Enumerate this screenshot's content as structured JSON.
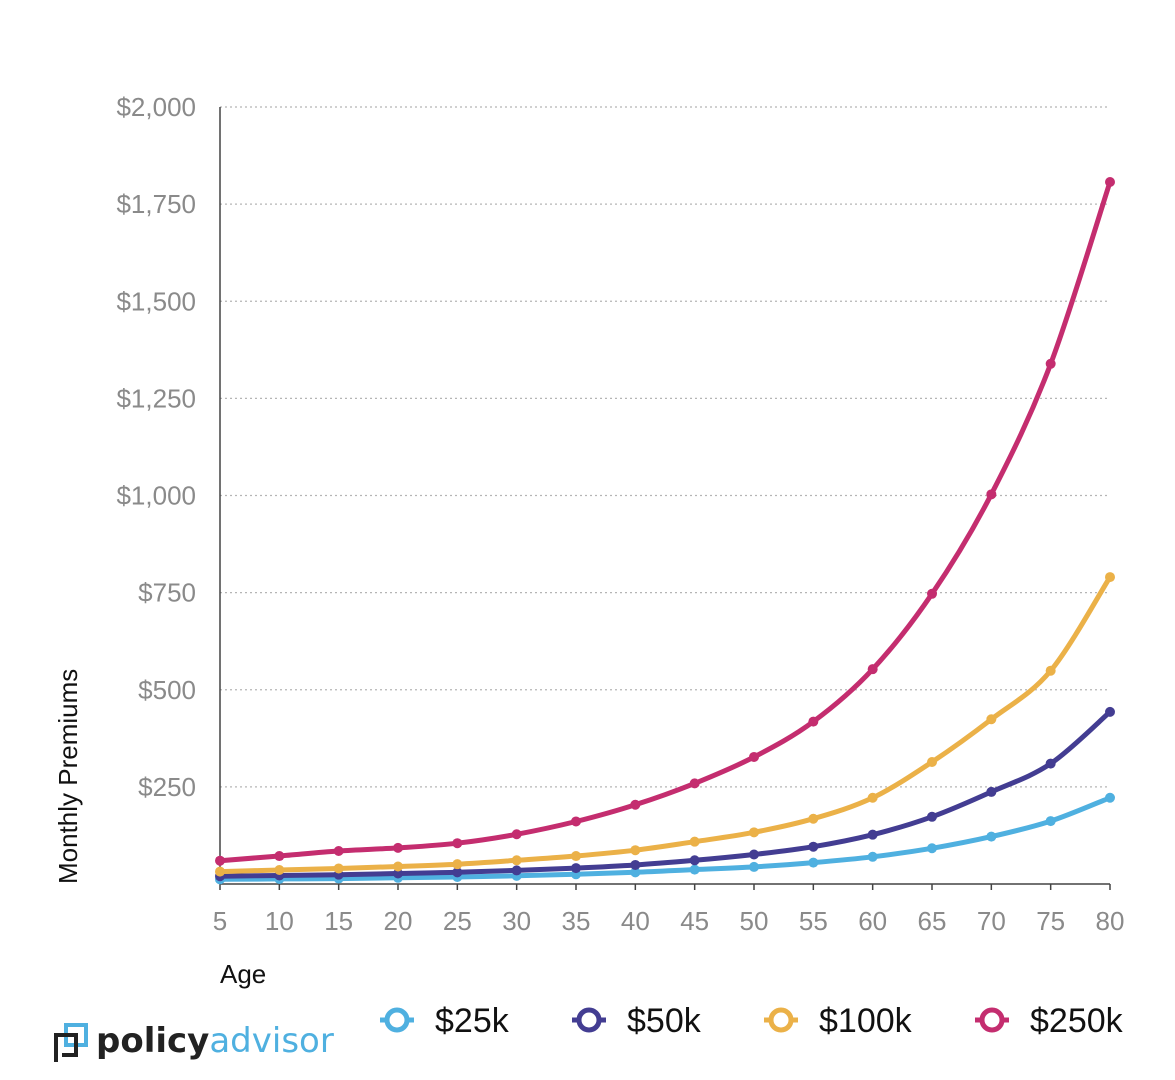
{
  "chart_data": {
    "type": "line",
    "xlabel": "Age",
    "ylabel": "Monthly Premiums",
    "x": [
      5,
      10,
      15,
      20,
      25,
      30,
      35,
      40,
      45,
      50,
      55,
      60,
      65,
      70,
      75,
      80
    ],
    "x_ticks": [
      "5",
      "10",
      "15",
      "20",
      "25",
      "30",
      "35",
      "40",
      "45",
      "50",
      "55",
      "60",
      "65",
      "70",
      "75",
      "80"
    ],
    "ylim": [
      0,
      2000
    ],
    "y_ticks": [
      250,
      500,
      750,
      1000,
      1250,
      1500,
      1750,
      2000
    ],
    "y_tick_labels": [
      "$250",
      "$500",
      "$750",
      "$1,000",
      "$1,250",
      "$1,500",
      "$1,750",
      "$2,000"
    ],
    "grid": "horizontal dotted",
    "legend_position": "bottom",
    "series": [
      {
        "name": "$25k",
        "color": "#4FB0E0",
        "values": [
          12,
          13,
          14,
          16,
          18,
          21,
          25,
          30,
          37,
          44,
          55,
          70,
          92,
          122,
          162,
          222
        ]
      },
      {
        "name": "$50k",
        "color": "#433D92",
        "values": [
          20,
          22,
          24,
          27,
          30,
          35,
          41,
          49,
          61,
          76,
          96,
          127,
          173,
          237,
          310,
          443
        ]
      },
      {
        "name": "$100k",
        "color": "#EBB148",
        "values": [
          32,
          36,
          40,
          45,
          51,
          61,
          72,
          87,
          109,
          133,
          168,
          222,
          314,
          424,
          549,
          790
        ]
      },
      {
        "name": "$250k",
        "color": "#C42D6F",
        "values": [
          60,
          72,
          85,
          93,
          105,
          128,
          161,
          204,
          259,
          327,
          418,
          553,
          747,
          1003,
          1339,
          1807
        ]
      }
    ]
  },
  "logo": {
    "part1": "policy",
    "part2": "advisor"
  }
}
